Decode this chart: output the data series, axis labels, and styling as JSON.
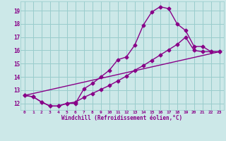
{
  "bg_color": "#cce8e8",
  "line_color": "#880088",
  "grid_color": "#99cccc",
  "xlabel": "Windchill (Refroidissement éolien,°C)",
  "tick_color": "#880088",
  "xlim": [
    -0.5,
    23.5
  ],
  "ylim": [
    11.5,
    19.7
  ],
  "xticks": [
    0,
    1,
    2,
    3,
    4,
    5,
    6,
    7,
    8,
    9,
    10,
    11,
    12,
    13,
    14,
    15,
    16,
    17,
    18,
    19,
    20,
    21,
    22,
    23
  ],
  "yticks": [
    12,
    13,
    14,
    15,
    16,
    17,
    18,
    19
  ],
  "line1_x": [
    0,
    1,
    2,
    3,
    4,
    5,
    6,
    7,
    8,
    9,
    10,
    11,
    12,
    13,
    14,
    15,
    16,
    17,
    18,
    19,
    20,
    21,
    22,
    23
  ],
  "line1_y": [
    12.6,
    12.5,
    12.1,
    11.8,
    11.8,
    12.0,
    12.0,
    13.1,
    13.5,
    14.0,
    14.5,
    15.3,
    15.5,
    16.4,
    17.9,
    18.9,
    19.3,
    19.15,
    18.0,
    17.5,
    16.3,
    16.3,
    15.9,
    15.9
  ],
  "line2_x": [
    0,
    1,
    2,
    3,
    4,
    5,
    6,
    7,
    8,
    9,
    10,
    11,
    12,
    13,
    14,
    15,
    16,
    17,
    18,
    19,
    20,
    21,
    22,
    23
  ],
  "line2_y": [
    12.6,
    12.5,
    12.1,
    11.8,
    11.8,
    12.0,
    12.1,
    12.45,
    12.75,
    13.05,
    13.35,
    13.7,
    14.05,
    14.5,
    14.85,
    15.25,
    15.65,
    16.05,
    16.45,
    17.0,
    16.0,
    15.9,
    15.9,
    15.9
  ],
  "line3_x": [
    0,
    23
  ],
  "line3_y": [
    12.6,
    15.9
  ],
  "marker": "D",
  "markersize": 2.5,
  "linewidth": 1.0
}
